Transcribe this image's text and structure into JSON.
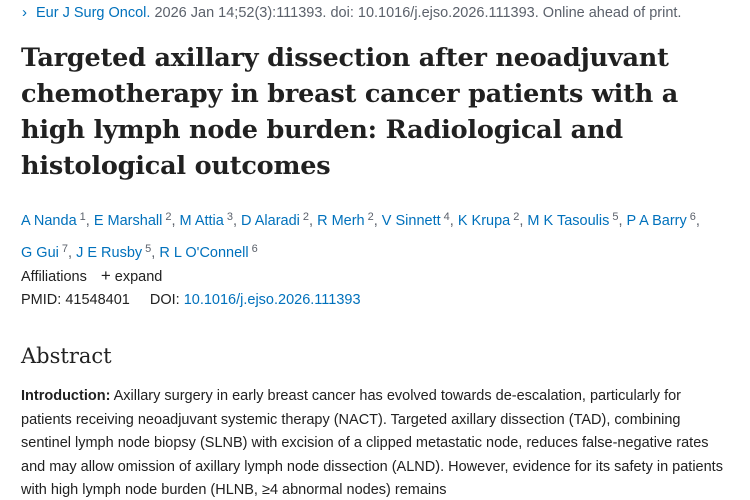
{
  "citation": {
    "journal": "Eur J Surg Oncol.",
    "details": " 2026 Jan 14;52(3):111393. doi: 10.1016/j.ejso.2026.111393. Online ahead of print."
  },
  "title": "Targeted axillary dissection after neoadjuvant chemotherapy in breast cancer patients with a high lymph node burden: Radiological and histological outcomes",
  "authors": [
    {
      "name": "A Nanda",
      "aff": "1"
    },
    {
      "name": "E Marshall",
      "aff": "2"
    },
    {
      "name": "M Attia",
      "aff": "3"
    },
    {
      "name": "D Alaradi",
      "aff": "2"
    },
    {
      "name": "R Merh",
      "aff": "2"
    },
    {
      "name": "V Sinnett",
      "aff": "4"
    },
    {
      "name": "K Krupa",
      "aff": "2"
    },
    {
      "name": "M K Tasoulis",
      "aff": "5"
    },
    {
      "name": "P A Barry",
      "aff": "6"
    },
    {
      "name": "G Gui",
      "aff": "7"
    },
    {
      "name": "J E Rusby",
      "aff": "5"
    },
    {
      "name": "R L O'Connell",
      "aff": "6"
    }
  ],
  "affiliations": {
    "label": "Affiliations",
    "expand_label": "expand"
  },
  "ids": {
    "pmid_label": "PMID:",
    "pmid": "41548401",
    "doi_label": "DOI:",
    "doi": "10.1016/j.ejso.2026.111393"
  },
  "abstract": {
    "heading": "Abstract",
    "intro_label": "Introduction:",
    "intro_text": " Axillary surgery in early breast cancer has evolved towards de-escalation, particularly for patients receiving neoadjuvant systemic therapy (NACT). Targeted axillary dissection (TAD), combining sentinel lymph node biopsy (SLNB) with excision of a clipped metastatic node, reduces false-negative rates and may allow omission of axillary lymph node dissection (ALND). However, evidence for its safety in patients with high lymph node burden (HLNB, ≥4 abnormal nodes) remains"
  },
  "colors": {
    "link": "#0071bc",
    "text": "#212121",
    "muted": "#5b616b"
  }
}
